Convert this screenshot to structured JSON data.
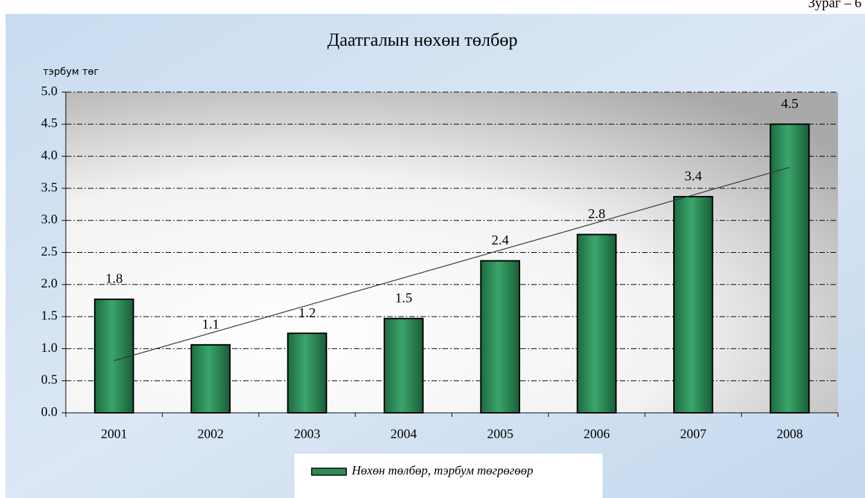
{
  "chart_data": {
    "type": "bar",
    "title": "Даатгалын нөхөн төлбөр",
    "annotation": "Зураг – 6",
    "y_label": "тэрбум төг",
    "categories": [
      "2001",
      "2002",
      "2003",
      "2004",
      "2005",
      "2006",
      "2007",
      "2008"
    ],
    "series": [
      {
        "name": "Нөхөн төлбөр, тэрбум төгрөгөөр",
        "color": "#2e8b57",
        "values": [
          1.77,
          1.06,
          1.24,
          1.47,
          2.37,
          2.78,
          3.37,
          4.5
        ],
        "value_labels": [
          "1.8",
          "1.1",
          "1.2",
          "1.5",
          "2.4",
          "2.8",
          "3.4",
          "4.5"
        ]
      }
    ],
    "ylim": [
      0,
      5
    ],
    "yticks": [
      {
        "value": 0,
        "label": "0.0"
      },
      {
        "value": 0.5,
        "label": "0.5"
      },
      {
        "value": 1,
        "label": "1.0"
      },
      {
        "value": 1.5,
        "label": "1.5"
      },
      {
        "value": 2,
        "label": "2.0"
      },
      {
        "value": 2.5,
        "label": "2.5"
      },
      {
        "value": 3,
        "label": "3.0"
      },
      {
        "value": 3.5,
        "label": "3.5"
      },
      {
        "value": 4,
        "label": "4.0"
      },
      {
        "value": 4.5,
        "label": "4.5"
      },
      {
        "value": 5,
        "label": "5.0"
      }
    ],
    "grid": true,
    "trendline": "linear",
    "legend": "bottom"
  }
}
